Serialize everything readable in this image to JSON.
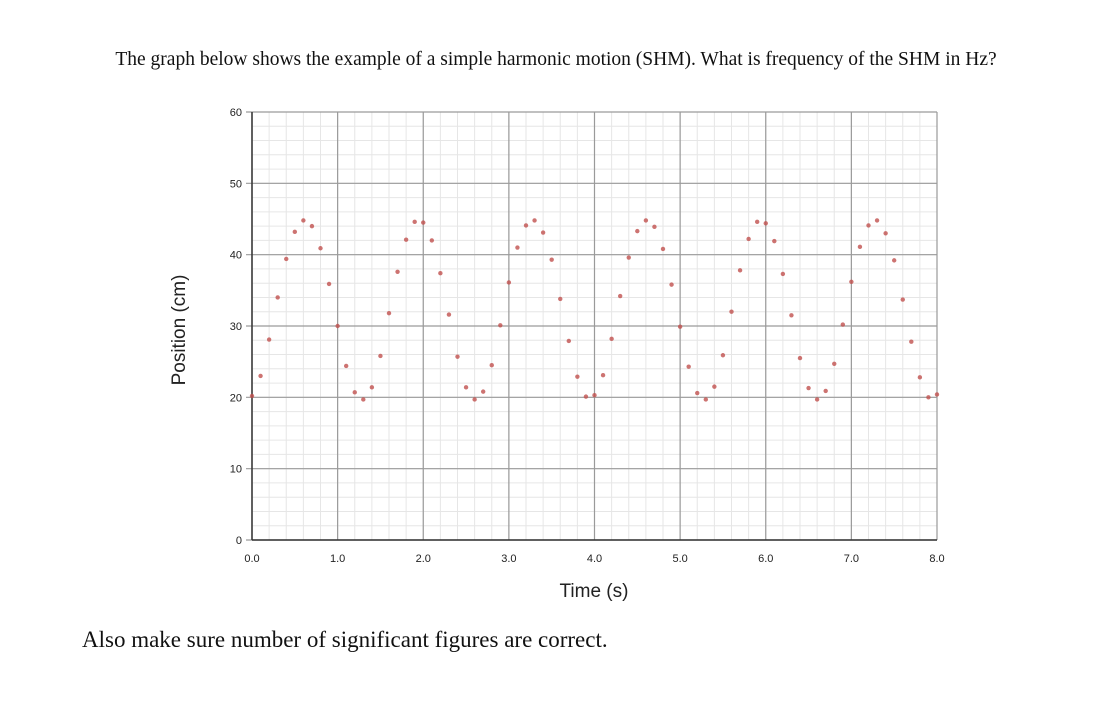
{
  "question": "The graph below shows the example of a simple harmonic motion (SHM). What is frequency of the SHM in Hz?",
  "note": "Also make sure number of significant figures are correct.",
  "chart_data": {
    "type": "scatter",
    "xlabel": "Time (s)",
    "ylabel": "Position (cm)",
    "xlim": [
      0,
      8.0
    ],
    "ylim": [
      0,
      60
    ],
    "x_ticks": [
      "0.0",
      "1.0",
      "2.0",
      "3.0",
      "4.0",
      "5.0",
      "6.0",
      "7.0",
      "8.0"
    ],
    "y_ticks": [
      "0",
      "10",
      "20",
      "30",
      "40",
      "50",
      "60"
    ],
    "grid": true,
    "marker_color": "#c0504d",
    "series": [
      {
        "x": [
          0.0,
          0.1,
          0.2,
          0.3,
          0.4,
          0.5,
          0.6,
          0.7,
          0.8,
          0.9,
          1.0,
          1.1,
          1.2,
          1.3,
          1.4,
          1.5,
          1.6,
          1.7,
          1.8,
          1.9,
          2.0,
          2.1,
          2.2,
          2.3,
          2.4,
          2.5,
          2.6,
          2.7,
          2.8,
          2.9,
          3.0,
          3.1,
          3.2,
          3.3,
          3.4,
          3.5,
          3.6,
          3.7,
          3.8,
          3.9,
          4.0,
          4.1,
          4.2,
          4.3,
          4.4,
          4.5,
          4.6,
          4.7,
          4.8,
          4.9,
          5.0,
          5.1,
          5.2,
          5.3,
          5.4,
          5.5,
          5.6,
          5.7,
          5.8,
          5.9,
          6.0,
          6.1,
          6.2,
          6.3,
          6.4,
          6.5,
          6.6,
          6.7,
          6.8,
          6.9,
          7.0,
          7.1,
          7.2,
          7.3,
          7.4,
          7.5,
          7.6,
          7.7,
          7.8,
          7.9,
          8.0
        ],
        "y": [
          20.2,
          23.0,
          28.1,
          34.0,
          39.4,
          43.2,
          44.8,
          44.0,
          40.9,
          35.9,
          30.0,
          24.4,
          20.7,
          19.7,
          21.4,
          25.8,
          31.8,
          37.6,
          42.1,
          44.6,
          44.5,
          42.0,
          37.4,
          31.6,
          25.7,
          21.4,
          19.7,
          20.8,
          24.5,
          30.1,
          36.1,
          41.0,
          44.1,
          44.8,
          43.1,
          39.3,
          33.8,
          27.9,
          22.9,
          20.1,
          20.3,
          23.1,
          28.2,
          34.2,
          39.6,
          43.3,
          44.8,
          43.9,
          40.8,
          35.8,
          29.9,
          24.3,
          20.6,
          19.7,
          21.5,
          25.9,
          32.0,
          37.8,
          42.2,
          44.6,
          44.4,
          41.9,
          37.3,
          31.5,
          25.5,
          21.3,
          19.7,
          20.9,
          24.7,
          30.2,
          36.2,
          41.1,
          44.1,
          44.8,
          43.0,
          39.2,
          33.7,
          27.8,
          22.8,
          20.0,
          20.4
        ]
      }
    ]
  }
}
